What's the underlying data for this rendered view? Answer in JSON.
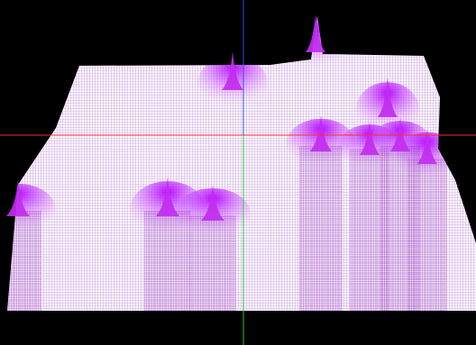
{
  "colors": {
    "background": "#000000",
    "surface_base": "#ffffff",
    "surface_peak": "#c000e0",
    "mesh_line": "#8e1fb2",
    "axis_x": "#ff2a2a",
    "axis_y_upper": "#2a4bff",
    "axis_y_lower": "#22c83a"
  },
  "axes": {
    "horizontal": "red-line",
    "vertical_top": "blue-line",
    "vertical_bottom": "green-line"
  }
}
